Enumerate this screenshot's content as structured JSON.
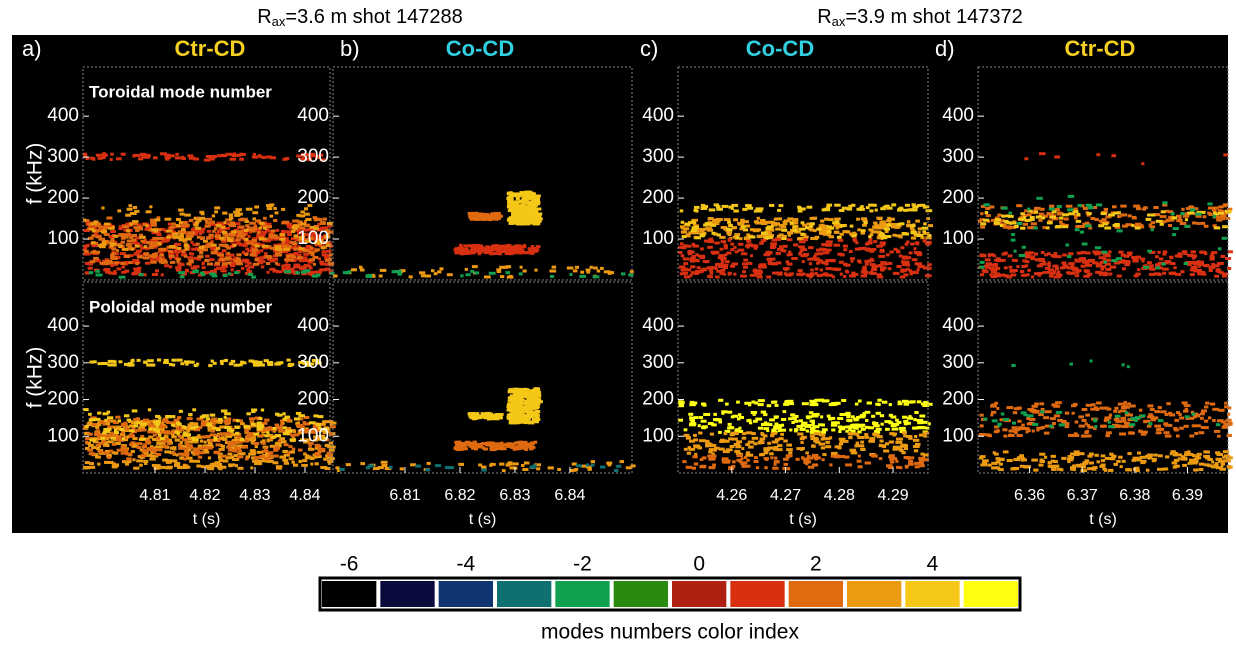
{
  "headers": [
    {
      "base": "R",
      "sub": "ax",
      "rest": "=3.6 m shot 147288"
    },
    {
      "base": "R",
      "sub": "ax",
      "rest": "=3.9 m shot 147372"
    }
  ],
  "ylabel": "f (kHz)",
  "xlabel": "t (s)",
  "ylim": [
    0,
    520
  ],
  "yticks": [
    100,
    200,
    300,
    400
  ],
  "sub_labels": [
    "Toroidal mode number",
    "Poloidal mode number"
  ],
  "panels": [
    {
      "letter": "a)",
      "title": "Ctr-CD",
      "title_color": "#f5d020",
      "xlim": [
        4.7956,
        4.845
      ],
      "xticks": [
        4.81,
        4.82,
        4.83,
        4.84
      ]
    },
    {
      "letter": "b)",
      "title": "Co-CD",
      "title_color": "#30d0e0",
      "xlim": [
        6.7969,
        6.8513
      ],
      "xticks": [
        6.81,
        6.82,
        6.83,
        6.84
      ]
    },
    {
      "letter": "c)",
      "title": "Co-CD",
      "title_color": "#30d0e0",
      "xlim": [
        4.25,
        4.2965
      ],
      "xticks": [
        4.26,
        4.27,
        4.28,
        4.29
      ]
    },
    {
      "letter": "d)",
      "title": "Ctr-CD",
      "title_color": "#f5d020",
      "xlim": [
        6.3502,
        6.3977
      ],
      "xticks": [
        6.36,
        6.37,
        6.38,
        6.39
      ]
    }
  ],
  "colorbar": {
    "label": "modes numbers color index",
    "values": [
      -6,
      -5,
      -4,
      -3,
      -2,
      -1,
      0,
      1,
      2,
      3,
      4,
      5
    ],
    "colors": [
      "#000000",
      "#0a0a3c",
      "#0f3470",
      "#0e7070",
      "#10a050",
      "#2a8a10",
      "#b02010",
      "#d83010",
      "#e06a10",
      "#ec9a10",
      "#f5c818",
      "#ffff10"
    ],
    "ticks": [
      -6,
      -4,
      -2,
      0,
      2,
      4
    ]
  }
}
